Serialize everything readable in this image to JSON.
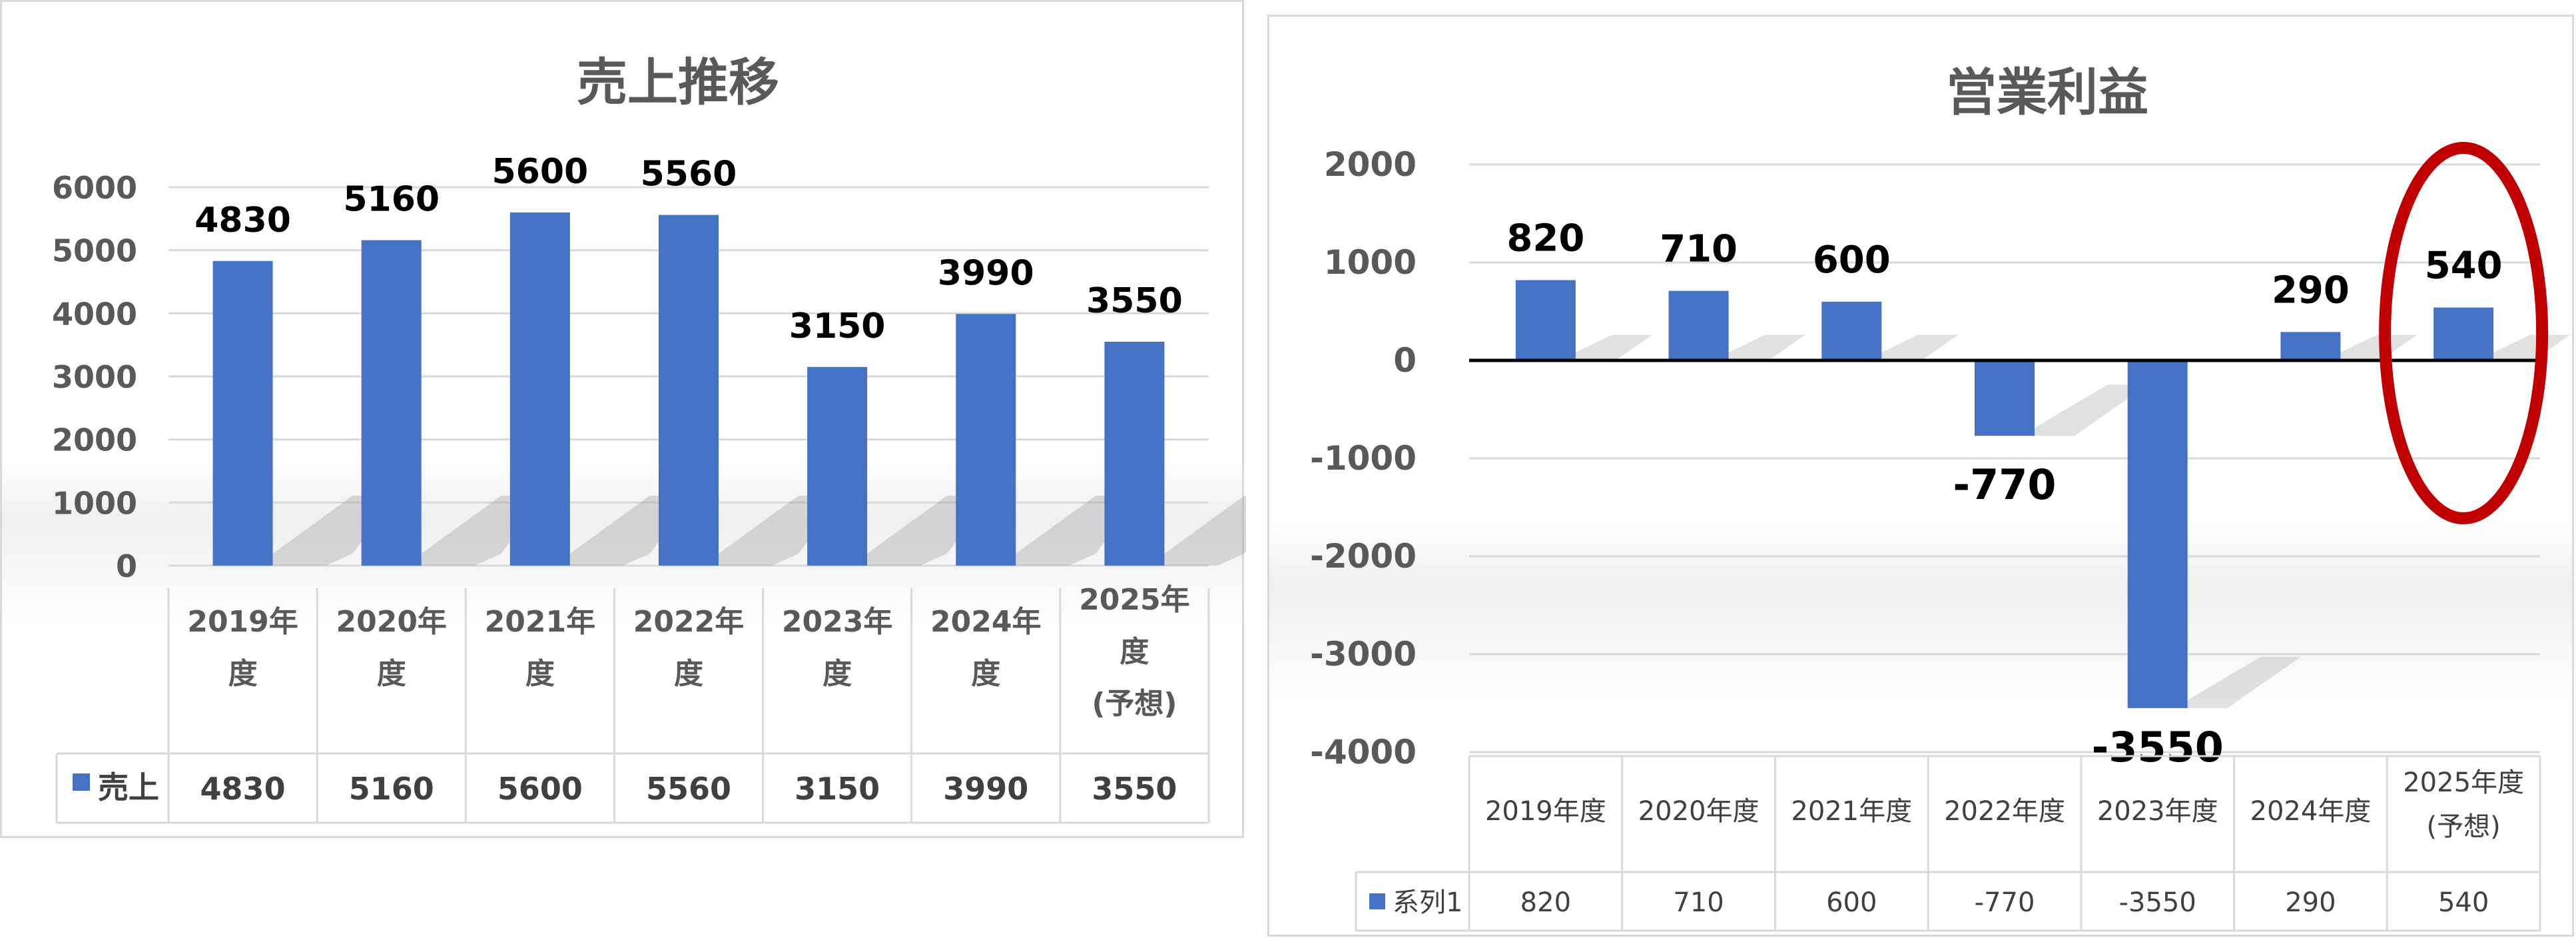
{
  "chart_data": [
    {
      "type": "bar",
      "title": "売上推移",
      "categories": [
        "2019年度",
        "2020年度",
        "2021年度",
        "2022年度",
        "2023年度",
        "2024年度",
        "2025年度(予想)"
      ],
      "category_lines": [
        [
          "2019年",
          "度"
        ],
        [
          "2020年",
          "度"
        ],
        [
          "2021年",
          "度"
        ],
        [
          "2022年",
          "度"
        ],
        [
          "2023年",
          "度"
        ],
        [
          "2024年",
          "度"
        ],
        [
          "2025年",
          "度",
          "(予想)"
        ]
      ],
      "series": [
        {
          "name": "売上",
          "values": [
            4830,
            5160,
            5600,
            5560,
            3150,
            3990,
            3550
          ]
        }
      ],
      "yticks": [
        "0",
        "1000",
        "2000",
        "3000",
        "4000",
        "5000",
        "6000"
      ],
      "ylim": [
        0,
        6000
      ],
      "grid": true,
      "data_table": true,
      "legend": "data-table",
      "color": "#4472C4"
    },
    {
      "type": "bar",
      "title": "営業利益",
      "categories": [
        "2019年度",
        "2020年度",
        "2021年度",
        "2022年度",
        "2023年度",
        "2024年度",
        "2025年度(予想)"
      ],
      "category_lines": [
        [
          "2019年度"
        ],
        [
          "2020年度"
        ],
        [
          "2021年度"
        ],
        [
          "2022年度"
        ],
        [
          "2023年度"
        ],
        [
          "2024年度"
        ],
        [
          "2025年度",
          "(予想)"
        ]
      ],
      "series": [
        {
          "name": "系列1",
          "values": [
            820,
            710,
            600,
            -770,
            -3550,
            290,
            540
          ]
        }
      ],
      "yticks": [
        "-4000",
        "-3000",
        "-2000",
        "-1000",
        "0",
        "1000",
        "2000"
      ],
      "ylim": [
        -4000,
        2000
      ],
      "grid": true,
      "data_table": true,
      "legend": "data-table",
      "color": "#4472C4",
      "highlight_label_color": "#FF0000",
      "highlight_label_index": 4,
      "emphasis_ellipse_index": 6,
      "emphasis_color": "#C00000"
    }
  ]
}
